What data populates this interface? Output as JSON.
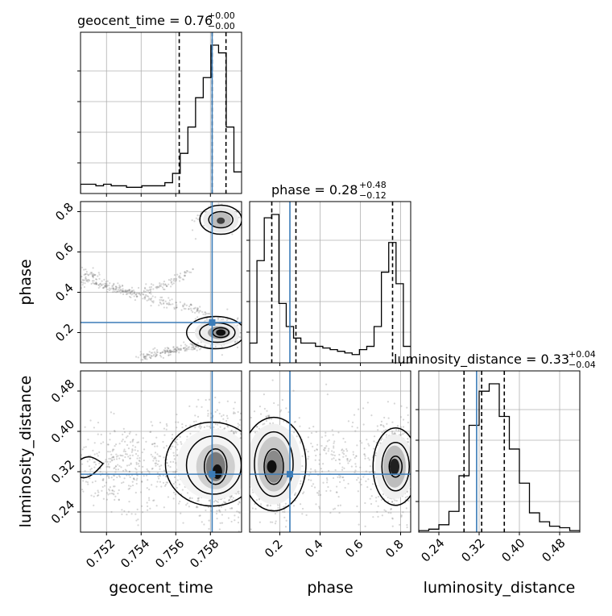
{
  "chart_data": {
    "type": "corner",
    "truth_color": "#3b7cb8",
    "parameters": [
      {
        "name": "geocent_time",
        "xlabel": "geocent_time",
        "title_base": "geocent_time = 0.76",
        "title_plus": "+0.00",
        "title_minus": "−0.00",
        "range": [
          0.7505,
          0.7598
        ],
        "ticks": [
          0.752,
          0.754,
          0.756,
          0.758
        ],
        "tick_labels": [
          "0.752",
          "0.754",
          "0.756",
          "0.758"
        ],
        "truth": 0.7581,
        "quantiles": [
          0.7562,
          0.7581,
          0.7589
        ],
        "hist": [
          0.06,
          0.06,
          0.05,
          0.06,
          0.05,
          0.05,
          0.04,
          0.04,
          0.05,
          0.05,
          0.05,
          0.07,
          0.13,
          0.26,
          0.43,
          0.62,
          0.75,
          0.96,
          0.91,
          0.43,
          0.14
        ]
      },
      {
        "name": "phase",
        "xlabel": "phase",
        "ylabel": "phase",
        "title_base": "phase = 0.28",
        "title_plus": "+0.48",
        "title_minus": "−0.12",
        "range": [
          0.05,
          0.85
        ],
        "ticks": [
          0.2,
          0.4,
          0.6,
          0.8
        ],
        "tick_labels": [
          "0.2",
          "0.4",
          "0.6",
          "0.8"
        ],
        "truth": 0.25,
        "quantiles": [
          0.16,
          0.28,
          0.76
        ],
        "hist": [
          0.12,
          0.62,
          0.88,
          0.9,
          0.36,
          0.22,
          0.15,
          0.12,
          0.12,
          0.1,
          0.09,
          0.08,
          0.07,
          0.06,
          0.05,
          0.08,
          0.1,
          0.22,
          0.55,
          0.73,
          0.48,
          0.1
        ]
      },
      {
        "name": "luminosity_distance",
        "xlabel": "luminosity_distance",
        "ylabel": "luminosity_distance",
        "title_base": "luminosity_distance = 0.33",
        "title_plus": "+0.04",
        "title_minus": "−0.04",
        "range": [
          0.2,
          0.52
        ],
        "ticks": [
          0.24,
          0.32,
          0.4,
          0.48
        ],
        "tick_labels": [
          "0.24",
          "0.32",
          "0.40",
          "0.48"
        ],
        "truth": 0.315,
        "quantiles": [
          0.29,
          0.325,
          0.37
        ],
        "hist": [
          0.01,
          0.02,
          0.05,
          0.14,
          0.38,
          0.72,
          0.95,
          1.0,
          0.78,
          0.56,
          0.33,
          0.13,
          0.07,
          0.04,
          0.03,
          0.01
        ]
      }
    ]
  }
}
